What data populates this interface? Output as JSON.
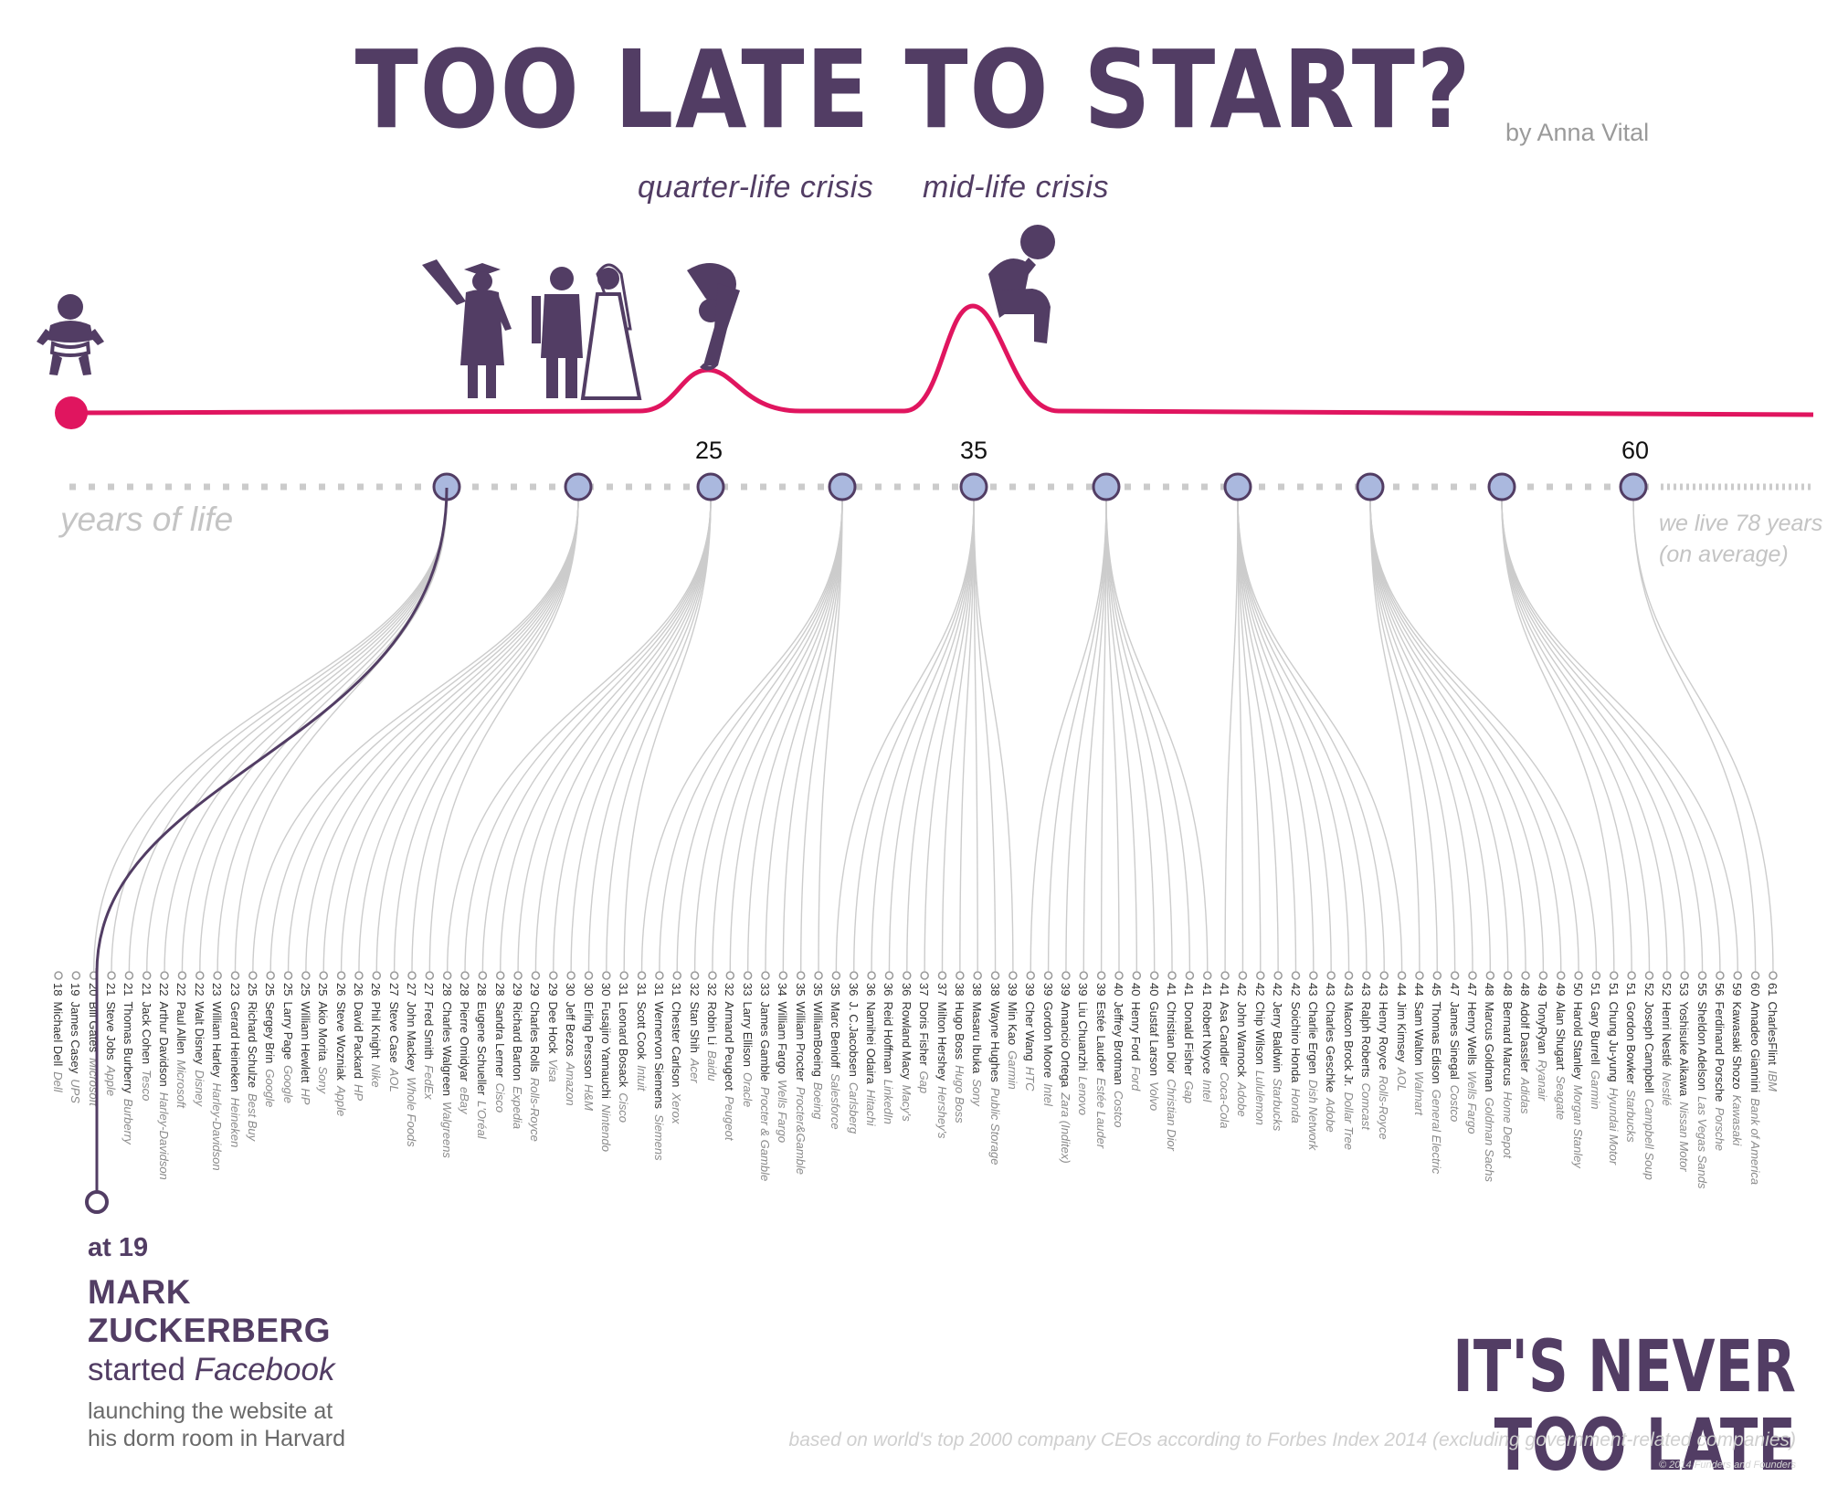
{
  "title": "TOO LATE TO START?",
  "byline": "by Anna Vital",
  "crisis_labels": {
    "quarter": "quarter-life crisis",
    "mid": "mid-life crisis"
  },
  "axis": {
    "label": "years of life",
    "ticks": [
      "25",
      "35",
      "60"
    ],
    "average_line1": "we live 78 years",
    "average_line2": "(on average)"
  },
  "highlight": {
    "age_text": "at 19",
    "first": "MARK",
    "last": "ZUCKERBERG",
    "started_prefix": "started ",
    "company": "Facebook",
    "desc_line1": "launching the website at",
    "desc_line2": "his dorm room in Harvard"
  },
  "footer": {
    "headline": "IT'S NEVER TOO LATE",
    "source": "based on world's top 2000 company CEOs according to Forbes Index 2014 (excluding government-related companies)",
    "copyright": "© 2014 Funders and Founders"
  },
  "colors": {
    "purple": "#523d64",
    "pink": "#e0155f",
    "node_fill": "#aab8de",
    "line_grey": "#cccccc"
  },
  "icons": [
    "baby-icon",
    "graduate-icon",
    "wedding-couple-icon",
    "bent-person-icon",
    "thinker-icon"
  ],
  "founders": [
    {
      "age": "18",
      "name": "Michael Dell",
      "company": "Dell"
    },
    {
      "age": "19",
      "name": "James Casey",
      "company": "UPS"
    },
    {
      "age": "20",
      "name": "Bill Gates",
      "company": "Microsoft"
    },
    {
      "age": "21",
      "name": "Steve Jobs",
      "company": "Apple"
    },
    {
      "age": "21",
      "name": "Thomas Burberry",
      "company": "Burberry"
    },
    {
      "age": "21",
      "name": "Jack Cohen",
      "company": "Tesco"
    },
    {
      "age": "22",
      "name": "Arthur Davidson",
      "company": "Harley-Davidson"
    },
    {
      "age": "22",
      "name": "Paul Allen",
      "company": "Microsoft"
    },
    {
      "age": "22",
      "name": "Walt Disney",
      "company": "Disney"
    },
    {
      "age": "23",
      "name": "William Harley",
      "company": "Harley-Davidson"
    },
    {
      "age": "23",
      "name": "Gerard Heineken",
      "company": "Heineken"
    },
    {
      "age": "25",
      "name": "Richard Schulze",
      "company": "Best Buy"
    },
    {
      "age": "25",
      "name": "Sergey Brin",
      "company": "Google"
    },
    {
      "age": "25",
      "name": "Larry Page",
      "company": "Google"
    },
    {
      "age": "25",
      "name": "William Hewlett",
      "company": "HP"
    },
    {
      "age": "25",
      "name": "Akio Morita",
      "company": "Sony"
    },
    {
      "age": "26",
      "name": "Steve Wozniak",
      "company": "Apple"
    },
    {
      "age": "26",
      "name": "David Packard",
      "company": "HP"
    },
    {
      "age": "26",
      "name": "Phil Knight",
      "company": "Nike"
    },
    {
      "age": "27",
      "name": "Steve Case",
      "company": "AOL"
    },
    {
      "age": "27",
      "name": "John Mackey",
      "company": "Whole Foods"
    },
    {
      "age": "27",
      "name": "Fred Smith",
      "company": "FedEx"
    },
    {
      "age": "28",
      "name": "Charles Walgreen",
      "company": "Walgreens"
    },
    {
      "age": "28",
      "name": "Pierre Omidyar",
      "company": "eBay"
    },
    {
      "age": "28",
      "name": "Eugene Schueller",
      "company": "L'Oréal"
    },
    {
      "age": "28",
      "name": "Sandra Lerner",
      "company": "Cisco"
    },
    {
      "age": "29",
      "name": "Richard Barton",
      "company": "Expedia"
    },
    {
      "age": "29",
      "name": "Charles Rolls",
      "company": "Rolls-Royce"
    },
    {
      "age": "29",
      "name": "Dee Hock",
      "company": "Visa"
    },
    {
      "age": "30",
      "name": "Jeff Bezos",
      "company": "Amazon"
    },
    {
      "age": "30",
      "name": "Erling Persson",
      "company": "H&M"
    },
    {
      "age": "30",
      "name": "Fusajiro Yamauchi",
      "company": "Nintendo"
    },
    {
      "age": "31",
      "name": "Leonard Bosack",
      "company": "Cisco"
    },
    {
      "age": "31",
      "name": "Scott Cook",
      "company": "Intuit"
    },
    {
      "age": "31",
      "name": "Wernervon Siemens",
      "company": "Siemens"
    },
    {
      "age": "31",
      "name": "Chester Carlson",
      "company": "Xerox"
    },
    {
      "age": "32",
      "name": "Stan Shih",
      "company": "Acer"
    },
    {
      "age": "32",
      "name": "Robin Li",
      "company": "Baidu"
    },
    {
      "age": "32",
      "name": "Armand Peugeot",
      "company": "Peugeot"
    },
    {
      "age": "33",
      "name": "Larry Ellison",
      "company": "Oracle"
    },
    {
      "age": "33",
      "name": "James Gamble",
      "company": "Procter & Gamble"
    },
    {
      "age": "34",
      "name": "William Fargo",
      "company": "Wells Fargo"
    },
    {
      "age": "35",
      "name": "William Procter",
      "company": "Procter&Gamble"
    },
    {
      "age": "35",
      "name": "WilliamBoeing",
      "company": "Boeing"
    },
    {
      "age": "35",
      "name": "Marc Benioff",
      "company": "Salesforce"
    },
    {
      "age": "36",
      "name": "J. C.Jacobsen",
      "company": "Carlsberg"
    },
    {
      "age": "36",
      "name": "Namihei Odaira",
      "company": "Hitachi"
    },
    {
      "age": "36",
      "name": "Reid Hoffman",
      "company": "LinkedIn"
    },
    {
      "age": "36",
      "name": "Rowland Macy",
      "company": "Macy's"
    },
    {
      "age": "37",
      "name": "Doris Fisher",
      "company": "Gap"
    },
    {
      "age": "37",
      "name": "Milton Hershey",
      "company": "Hershey's"
    },
    {
      "age": "38",
      "name": "Hugo Boss",
      "company": "Hugo Boss"
    },
    {
      "age": "38",
      "name": "Masaru Ibuka",
      "company": "Sony"
    },
    {
      "age": "38",
      "name": "Wayne Hughes",
      "company": "Public Storage"
    },
    {
      "age": "39",
      "name": "Min Kao",
      "company": "Garmin"
    },
    {
      "age": "39",
      "name": "Cher Wang",
      "company": "HTC"
    },
    {
      "age": "39",
      "name": "Gordon Moore",
      "company": "Intel"
    },
    {
      "age": "39",
      "name": "Amancio Ortega",
      "company": "Zara (Inditex)"
    },
    {
      "age": "39",
      "name": "Liu Chuanzhi",
      "company": "Lenovo"
    },
    {
      "age": "39",
      "name": "Estée Lauder",
      "company": "Estée Lauder"
    },
    {
      "age": "40",
      "name": "Jeffrey Brotman",
      "company": "Costco"
    },
    {
      "age": "40",
      "name": "Henry Ford",
      "company": "Ford"
    },
    {
      "age": "40",
      "name": "Gustaf Larson",
      "company": "Volvo"
    },
    {
      "age": "41",
      "name": "Christian Dior",
      "company": "Christian Dior"
    },
    {
      "age": "41",
      "name": "Donald Fisher",
      "company": "Gap"
    },
    {
      "age": "41",
      "name": "Robert Noyce",
      "company": "Intel"
    },
    {
      "age": "41",
      "name": "Asa Candler",
      "company": "Coca-Cola"
    },
    {
      "age": "42",
      "name": "John Warnock",
      "company": "Adobe"
    },
    {
      "age": "42",
      "name": "Chip Wilson",
      "company": "Lululemon"
    },
    {
      "age": "42",
      "name": "Jerry Baldwin",
      "company": "Starbucks"
    },
    {
      "age": "42",
      "name": "Soichiro Honda",
      "company": "Honda"
    },
    {
      "age": "43",
      "name": "Charlie Ergen",
      "company": "Dish Network"
    },
    {
      "age": "43",
      "name": "Charles Geschke",
      "company": "Adobe"
    },
    {
      "age": "43",
      "name": "Macon Brock Jr.",
      "company": "Dollar Tree"
    },
    {
      "age": "43",
      "name": "Ralph Roberts",
      "company": "Comcast"
    },
    {
      "age": "43",
      "name": "Henry Royce",
      "company": "Rolls-Royce"
    },
    {
      "age": "44",
      "name": "Jim Kimsey",
      "company": "AOL"
    },
    {
      "age": "44",
      "name": "Sam Walton",
      "company": "Walmart"
    },
    {
      "age": "45",
      "name": "Thomas Edison",
      "company": "General Electric"
    },
    {
      "age": "47",
      "name": "James Sinegal",
      "company": "Costco"
    },
    {
      "age": "47",
      "name": "Henry Wells",
      "company": "Wells Fargo"
    },
    {
      "age": "48",
      "name": "Marcus Goldman",
      "company": "Goldman Sachs"
    },
    {
      "age": "48",
      "name": "Bernard Marcus",
      "company": "Home Depot"
    },
    {
      "age": "48",
      "name": "Adolf Dassler",
      "company": "Adidas"
    },
    {
      "age": "49",
      "name": "TonyRyan",
      "company": "Ryanair"
    },
    {
      "age": "49",
      "name": "Alan Shugart",
      "company": "Seagate"
    },
    {
      "age": "50",
      "name": "Harold Stanley",
      "company": "Morgan Stanley"
    },
    {
      "age": "51",
      "name": "Gary Burrell",
      "company": "Garmin"
    },
    {
      "age": "51",
      "name": "Chung Ju-yung",
      "company": "Hyundai Motor"
    },
    {
      "age": "51",
      "name": "Gordon Bowker",
      "company": "Starbucks"
    },
    {
      "age": "52",
      "name": "Joseph Campbell",
      "company": "Campbell Soup"
    },
    {
      "age": "52",
      "name": "Henri Nestlé",
      "company": "Nestlé"
    },
    {
      "age": "53",
      "name": "Yoshisuke Aikawa",
      "company": "Nissan Motor"
    },
    {
      "age": "55",
      "name": "Sheldon Adelson",
      "company": "Las Vegas Sands"
    },
    {
      "age": "56",
      "name": "Ferdinand Porsche",
      "company": "Porsche"
    },
    {
      "age": "59",
      "name": "Kawasaki Shozo",
      "company": "Kawasaki"
    },
    {
      "age": "60",
      "name": "Amadeo Giannini",
      "company": "Bank of America"
    },
    {
      "age": "61",
      "name": "CharlesFlint",
      "company": "IBM"
    }
  ]
}
